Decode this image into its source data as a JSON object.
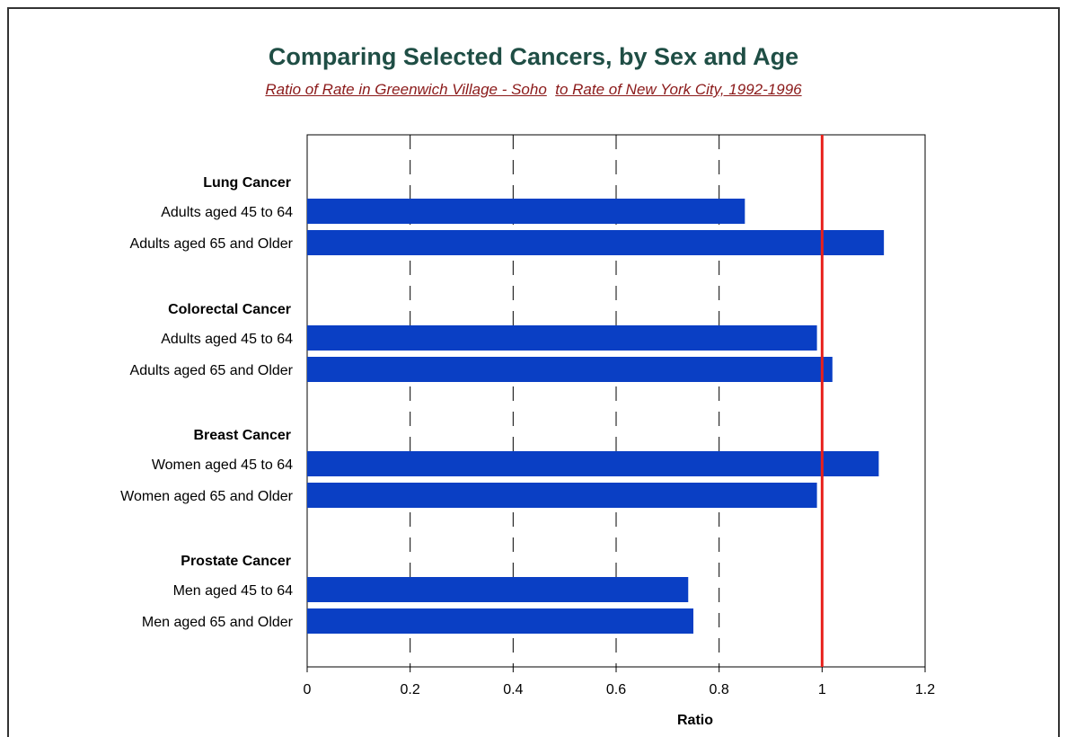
{
  "chart_data": {
    "type": "bar",
    "orientation": "horizontal",
    "title": "Comparing Selected Cancers, by Sex and Age",
    "subtitle_parts": [
      "Ratio of Rate in Greenwich Village - Soho",
      "to Rate of New York City, 1992-1996"
    ],
    "xlabel": "Ratio",
    "ylabel": "",
    "xlim": [
      0,
      1.2
    ],
    "x_ticks": [
      "0",
      "0.2",
      "0.4",
      "0.6",
      "0.8",
      "1",
      "1.2"
    ],
    "grid": "vertical dashed",
    "reference_line": {
      "value": 1.0,
      "color": "#e8211c"
    },
    "bar_color": "#0a3fc4",
    "groups": [
      {
        "name": "Lung Cancer",
        "categories": [
          "Adults aged 45 to 64",
          "Adults aged 65 and Older"
        ],
        "values": [
          0.85,
          1.12
        ]
      },
      {
        "name": "Colorectal Cancer",
        "categories": [
          "Adults aged 45 to 64",
          "Adults aged 65 and Older"
        ],
        "values": [
          0.99,
          1.02
        ]
      },
      {
        "name": "Breast Cancer",
        "categories": [
          "Women aged 45 to 64",
          "Women aged 65 and Older"
        ],
        "values": [
          1.11,
          0.99
        ]
      },
      {
        "name": "Prostate Cancer",
        "categories": [
          "Men aged 45 to 64",
          "Men aged 65 and Older"
        ],
        "values": [
          0.74,
          0.75
        ]
      }
    ]
  }
}
